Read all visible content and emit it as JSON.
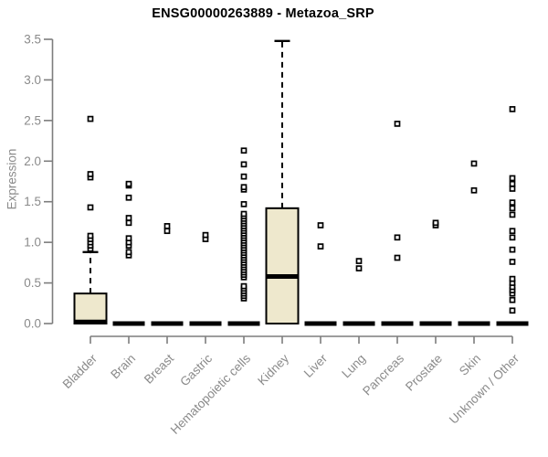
{
  "chart_data": {
    "type": "boxplot",
    "title": "ENSG00000263889 - Metazoa_SRP",
    "ylabel": "Expression",
    "xlabel": "",
    "ylim": [
      0,
      3.5
    ],
    "ytick_labels": [
      "0.0",
      "0.5",
      "1.0",
      "1.5",
      "2.0",
      "2.5",
      "3.0",
      "3.5"
    ],
    "grid": false,
    "legend": false,
    "colors": {
      "box_fill": "#EEE8CD",
      "box_stroke": "#000000",
      "median_color": "#000000",
      "whisker_color": "#000000",
      "outlier_color": "#000000",
      "axis_color": "#7d7d7d",
      "tick_label_color": "#8a8a8a",
      "title_color": "#000000",
      "background": "#ffffff"
    },
    "categories": [
      "Bladder",
      "Brain",
      "Breast",
      "Gastric",
      "Hematopoietic cells",
      "Kidney",
      "Liver",
      "Lung",
      "Pancreas",
      "Prostate",
      "Skin",
      "Unknown / Other"
    ],
    "boxes": [
      {
        "category": "Bladder",
        "q1": 0,
        "median": 0.02,
        "q3": 0.37,
        "whisker_low": 0,
        "whisker_high": 0.88,
        "outliers": [
          0.92,
          0.96,
          1.0,
          1.04,
          1.08,
          1.43,
          1.8,
          1.84,
          2.52
        ]
      },
      {
        "category": "Brain",
        "q1": 0,
        "median": 0,
        "q3": 0,
        "whisker_low": 0,
        "whisker_high": 0,
        "outliers": [
          0.84,
          0.88,
          0.96,
          1.0,
          1.05,
          1.24,
          1.3,
          1.55,
          1.7,
          1.72
        ]
      },
      {
        "category": "Breast",
        "q1": 0,
        "median": 0,
        "q3": 0,
        "whisker_low": 0,
        "whisker_high": 0,
        "outliers": [
          1.14,
          1.2
        ]
      },
      {
        "category": "Gastric",
        "q1": 0,
        "median": 0,
        "q3": 0,
        "whisker_low": 0,
        "whisker_high": 0,
        "outliers": [
          1.04,
          1.09
        ]
      },
      {
        "category": "Hematopoietic cells",
        "q1": 0,
        "median": 0,
        "q3": 0,
        "whisker_low": 0,
        "whisker_high": 0,
        "outliers": [
          0.31,
          0.34,
          0.37,
          0.4,
          0.43,
          0.46,
          0.57,
          0.6,
          0.63,
          0.66,
          0.69,
          0.72,
          0.75,
          0.78,
          0.81,
          0.84,
          0.87,
          0.9,
          0.93,
          0.96,
          0.99,
          1.02,
          1.05,
          1.08,
          1.11,
          1.14,
          1.17,
          1.2,
          1.23,
          1.26,
          1.29,
          1.32,
          1.35,
          1.47,
          1.65,
          1.68,
          1.81,
          1.96,
          2.13
        ]
      },
      {
        "category": "Kidney",
        "q1": 0,
        "median": 0.58,
        "q3": 1.42,
        "whisker_low": 0,
        "whisker_high": 3.48,
        "outliers": []
      },
      {
        "category": "Liver",
        "q1": 0,
        "median": 0,
        "q3": 0,
        "whisker_low": 0,
        "whisker_high": 0,
        "outliers": [
          0.95,
          1.21
        ]
      },
      {
        "category": "Lung",
        "q1": 0,
        "median": 0,
        "q3": 0,
        "whisker_low": 0,
        "whisker_high": 0,
        "outliers": [
          0.68,
          0.77
        ]
      },
      {
        "category": "Pancreas",
        "q1": 0,
        "median": 0,
        "q3": 0,
        "whisker_low": 0,
        "whisker_high": 0,
        "outliers": [
          0.81,
          1.06,
          2.46
        ]
      },
      {
        "category": "Prostate",
        "q1": 0,
        "median": 0,
        "q3": 0,
        "whisker_low": 0,
        "whisker_high": 0,
        "outliers": [
          1.21,
          1.24
        ]
      },
      {
        "category": "Skin",
        "q1": 0,
        "median": 0,
        "q3": 0,
        "whisker_low": 0,
        "whisker_high": 0,
        "outliers": [
          1.64,
          1.97
        ]
      },
      {
        "category": "Unknown / Other",
        "q1": 0,
        "median": 0,
        "q3": 0,
        "whisker_low": 0,
        "whisker_high": 0,
        "outliers": [
          0.16,
          0.29,
          0.37,
          0.41,
          0.45,
          0.5,
          0.55,
          0.76,
          0.91,
          1.06,
          1.14,
          1.34,
          1.42,
          1.49,
          1.66,
          1.72,
          1.79,
          2.64
        ]
      }
    ]
  }
}
